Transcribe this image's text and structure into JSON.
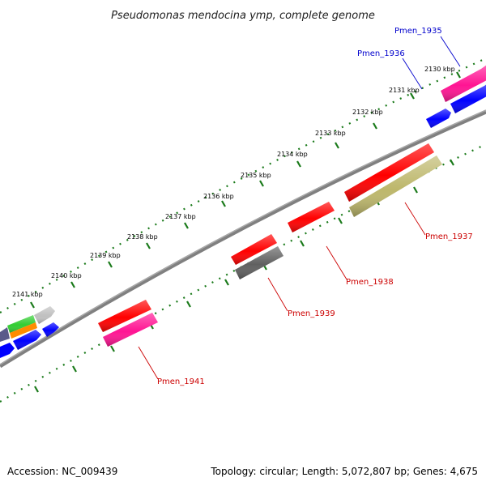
{
  "title": "Pseudomonas mendocina ymp, complete genome",
  "footer": {
    "accession": "Accession: NC_009439",
    "summary": "Topology: circular; Length: 5,072,807 bp; Genes: 4,675"
  },
  "tick_labels": [
    "2130 kbp",
    "2131 kbp",
    "2132 kbp",
    "2133 kbp",
    "2134 kbp",
    "2135 kbp",
    "2136 kbp",
    "2137 kbp",
    "2138 kbp",
    "2139 kbp",
    "2140 kbp",
    "2141 kbp"
  ],
  "gene_labels": {
    "pmen_1935": "Pmen_1935",
    "pmen_1936": "Pmen_1936",
    "pmen_1937": "Pmen_1937",
    "pmen_1938": "Pmen_1938",
    "pmen_1939": "Pmen_1939",
    "pmen_1941": "Pmen_1941"
  },
  "colors": {
    "outer_label_color": "#0000cc",
    "inner_label_color": "#cc0000",
    "tick_color": "#1a7a1a",
    "backbone_color": "#808080",
    "gene_red": "#ff0000",
    "gene_pink": "#ff1493",
    "gene_blue": "#0000ff",
    "gene_gray": "#606060",
    "gene_khaki": "#bdb76b",
    "gene_light_gray": "#c0c0c0",
    "gene_green": "#32cd32",
    "gene_orange": "#ff8c00",
    "gene_slate": "#5a5a8a"
  }
}
